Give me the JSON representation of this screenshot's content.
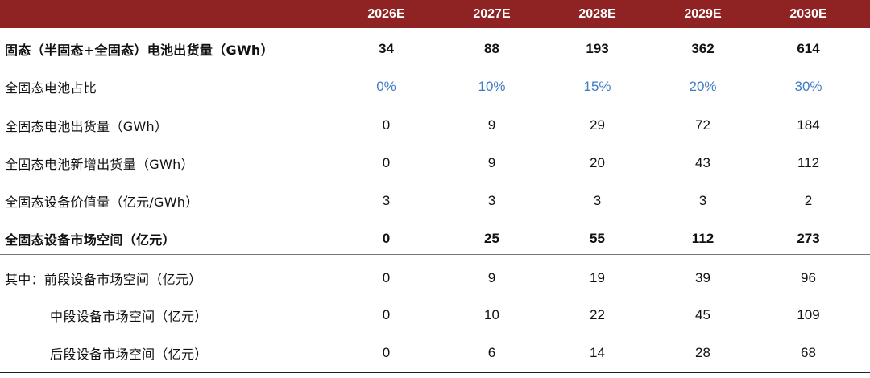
{
  "columns": [
    "2026E",
    "2027E",
    "2028E",
    "2029E",
    "2030E"
  ],
  "rows": [
    {
      "label": "固态（半固态+全固态）电池出货量（GWh）",
      "values": [
        "34",
        "88",
        "193",
        "362",
        "614"
      ]
    },
    {
      "label": "全固态电池占比",
      "values": [
        "0%",
        "10%",
        "15%",
        "20%",
        "30%"
      ]
    },
    {
      "label": "全固态电池出货量（GWh）",
      "values": [
        "0",
        "9",
        "29",
        "72",
        "184"
      ]
    },
    {
      "label": "全固态电池新增出货量（GWh）",
      "values": [
        "0",
        "9",
        "20",
        "43",
        "112"
      ]
    },
    {
      "label": "全固态设备价值量（亿元/GWh）",
      "values": [
        "3",
        "3",
        "3",
        "3",
        "2"
      ]
    },
    {
      "label": "全固态设备市场空间（亿元）",
      "values": [
        "0",
        "25",
        "55",
        "112",
        "273"
      ]
    },
    {
      "label": "其中：前段设备市场空间（亿元）",
      "values": [
        "0",
        "9",
        "19",
        "39",
        "96"
      ]
    },
    {
      "label": "中段设备市场空间（亿元）",
      "values": [
        "0",
        "10",
        "22",
        "45",
        "109"
      ]
    },
    {
      "label": "后段设备市场空间（亿元）",
      "values": [
        "0",
        "6",
        "14",
        "28",
        "68"
      ]
    }
  ],
  "colors": {
    "header_bg": "#8f2323",
    "header_text": "#ffffff",
    "percent_text": "#3f7cc2"
  }
}
